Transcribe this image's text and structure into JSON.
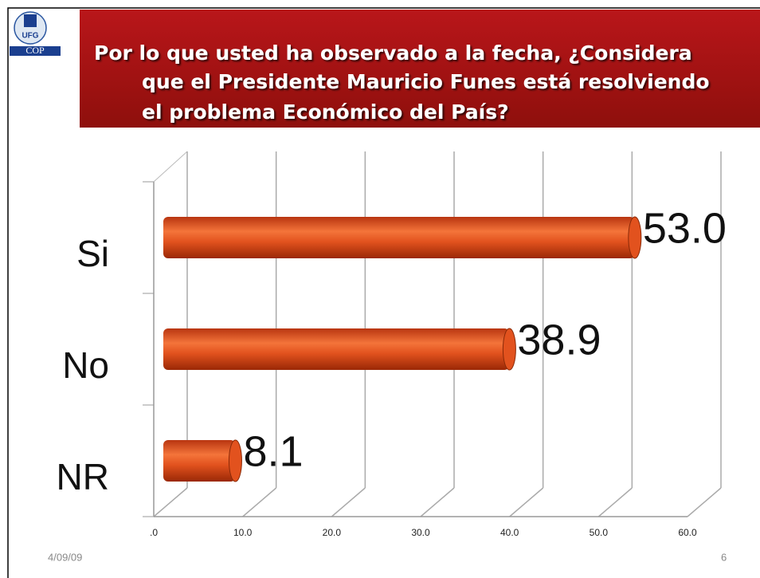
{
  "logo": [
    "UFG",
    "COP"
  ],
  "chart_data": {
    "type": "bar",
    "title": [
      "Por lo que usted ha observado a la fecha,  ¿Considera",
      "que el Presidente Mauricio Funes está resolviendo",
      "el problema Económico del País?"
    ],
    "categories": [
      "Si",
      "No",
      "NR"
    ],
    "values": [
      53.0,
      38.9,
      8.1
    ],
    "value_labels": [
      "53.0",
      "38.9",
      "8.1"
    ],
    "color": "#e2521e",
    "xlim": [
      0,
      60
    ],
    "xticks": [
      {
        "value": 0,
        "label": ".0"
      },
      {
        "value": 10,
        "label": "10.0"
      },
      {
        "value": 20,
        "label": "20.0"
      },
      {
        "value": 30,
        "label": "30.0"
      },
      {
        "value": 40,
        "label": "40.0"
      },
      {
        "value": 50,
        "label": "50.0"
      },
      {
        "value": 60,
        "label": "60.0"
      }
    ],
    "grid": true
  },
  "footer": {
    "date": "4/09/09",
    "page": "6"
  }
}
